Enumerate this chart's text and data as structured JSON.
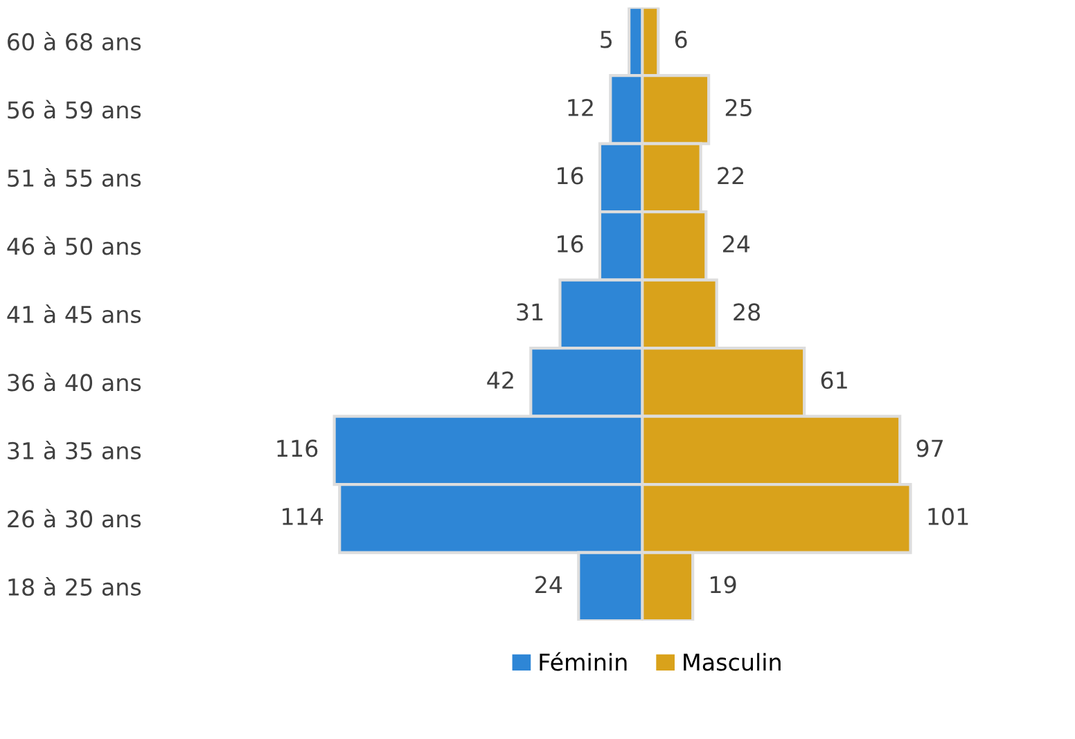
{
  "chart_data": [
    {
      "type": "bar",
      "orientation": "horizontal",
      "categories": [
        "60 à 68 ans",
        "56 à 59 ans",
        "51 à 55 ans",
        "46 à 50 ans",
        "41 à 45 ans",
        "36 à 40 ans",
        "31 à 35 ans",
        "26 à 30 ans",
        "18 à 25 ans"
      ],
      "series": [
        {
          "name": "Féminin",
          "color": "#2e86d6",
          "values": [
            5,
            12,
            16,
            16,
            31,
            42,
            116,
            114,
            24
          ]
        }
      ],
      "data_labels": true,
      "legend": "bottom",
      "tick_labels": "y"
    },
    {
      "type": "bar",
      "orientation": "horizontal",
      "categories": [
        null,
        null,
        null,
        null,
        null,
        null,
        null,
        null,
        null
      ],
      "series": [
        {
          "name": "Masculin",
          "color": "#d9a21b",
          "values": [
            6,
            25,
            22,
            24,
            28,
            61,
            97,
            101,
            19
          ]
        }
      ],
      "data_labels": true,
      "legend": "bottom",
      "tick_labels": false
    }
  ]
}
